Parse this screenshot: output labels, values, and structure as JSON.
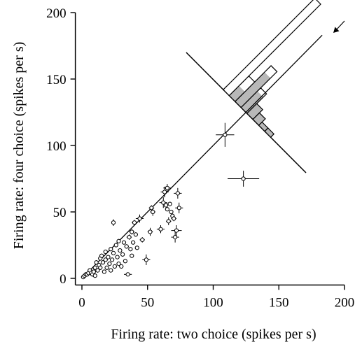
{
  "chart_data": {
    "type": "scatter",
    "title": "",
    "xlabel": "Firing rate: two choice (spikes per s)",
    "ylabel": "Firing rate: four choice (spikes per s)",
    "xlim": [
      -5,
      200
    ],
    "ylim": [
      -5,
      200
    ],
    "xticks": [
      "0",
      "50",
      "100",
      "150",
      "200"
    ],
    "yticks": [
      "0",
      "50",
      "100",
      "150",
      "200"
    ],
    "grid": false,
    "legend": "none",
    "reference_line": {
      "from": [
        0,
        0
      ],
      "to": [
        183,
        183
      ],
      "label": "unity line"
    },
    "points": [
      {
        "x": 1,
        "y": 1
      },
      {
        "x": 2,
        "y": 2
      },
      {
        "x": 3,
        "y": 3
      },
      {
        "x": 4,
        "y": 3
      },
      {
        "x": 5,
        "y": 4
      },
      {
        "x": 6,
        "y": 6
      },
      {
        "x": 7,
        "y": 4
      },
      {
        "x": 8,
        "y": 3
      },
      {
        "x": 9,
        "y": 5
      },
      {
        "x": 10,
        "y": 2
      },
      {
        "x": 10,
        "y": 8
      },
      {
        "x": 11,
        "y": 12
      },
      {
        "x": 12,
        "y": 6
      },
      {
        "x": 13,
        "y": 10
      },
      {
        "x": 14,
        "y": 8
      },
      {
        "x": 14,
        "y": 15
      },
      {
        "x": 15,
        "y": 17
      },
      {
        "x": 16,
        "y": 12
      },
      {
        "x": 17,
        "y": 5
      },
      {
        "x": 18,
        "y": 14
      },
      {
        "x": 18,
        "y": 20
      },
      {
        "x": 19,
        "y": 8
      },
      {
        "x": 20,
        "y": 16
      },
      {
        "x": 21,
        "y": 11
      },
      {
        "x": 22,
        "y": 6
      },
      {
        "x": 22,
        "y": 22
      },
      {
        "x": 23,
        "y": 14
      },
      {
        "x": 24,
        "y": 19
      },
      {
        "x": 24,
        "y": 42
      },
      {
        "x": 25,
        "y": 9
      },
      {
        "x": 26,
        "y": 25
      },
      {
        "x": 27,
        "y": 16
      },
      {
        "x": 28,
        "y": 11
      },
      {
        "x": 28,
        "y": 28
      },
      {
        "x": 29,
        "y": 21
      },
      {
        "x": 30,
        "y": 9
      },
      {
        "x": 31,
        "y": 18
      },
      {
        "x": 32,
        "y": 27
      },
      {
        "x": 33,
        "y": 13
      },
      {
        "x": 34,
        "y": 24
      },
      {
        "x": 35,
        "y": 3
      },
      {
        "x": 36,
        "y": 31
      },
      {
        "x": 37,
        "y": 22
      },
      {
        "x": 38,
        "y": 35
      },
      {
        "x": 38,
        "y": 17
      },
      {
        "x": 39,
        "y": 27
      },
      {
        "x": 40,
        "y": 42
      },
      {
        "x": 41,
        "y": 33
      },
      {
        "x": 42,
        "y": 23
      },
      {
        "x": 44,
        "y": 45
      },
      {
        "x": 46,
        "y": 29
      },
      {
        "x": 49,
        "y": 14
      },
      {
        "x": 52,
        "y": 35
      },
      {
        "x": 53,
        "y": 53
      },
      {
        "x": 54,
        "y": 50
      },
      {
        "x": 60,
        "y": 37
      },
      {
        "x": 62,
        "y": 57
      },
      {
        "x": 63,
        "y": 65
      },
      {
        "x": 64,
        "y": 55
      },
      {
        "x": 65,
        "y": 68
      },
      {
        "x": 65,
        "y": 52
      },
      {
        "x": 66,
        "y": 43
      },
      {
        "x": 67,
        "y": 56
      },
      {
        "x": 68,
        "y": 50
      },
      {
        "x": 69,
        "y": 47
      },
      {
        "x": 70,
        "y": 45
      },
      {
        "x": 71,
        "y": 31
      },
      {
        "x": 72,
        "y": 36
      },
      {
        "x": 73,
        "y": 64
      },
      {
        "x": 74,
        "y": 53
      },
      {
        "x": 109,
        "y": 108
      },
      {
        "x": 123,
        "y": 75
      }
    ],
    "histogram": {
      "axis": "diagonal, perpendicular to unity line",
      "outline_counts": [
        1,
        6,
        11,
        6,
        3,
        2,
        1,
        1,
        28
      ],
      "shaded_counts": [
        1,
        3,
        9,
        5,
        3,
        2,
        1,
        1,
        0
      ],
      "marker": "arrow"
    }
  }
}
